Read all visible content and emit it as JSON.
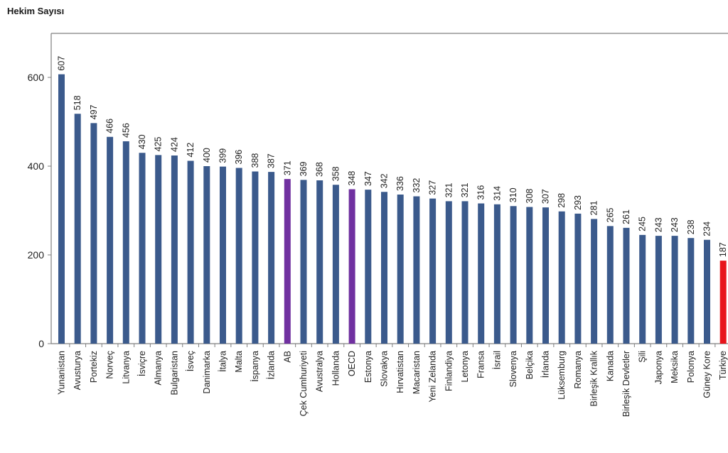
{
  "chart_data": {
    "type": "bar",
    "title": "Hekim Sayısı",
    "xlabel": "",
    "ylabel": "",
    "ylim": [
      0,
      700
    ],
    "yticks": [
      0,
      200,
      400,
      600
    ],
    "grid": false,
    "legend": "none",
    "categories": [
      "Yunanistan",
      "Avusturya",
      "Portekiz",
      "Norveç",
      "Litvanya",
      "İsviçre",
      "Almanya",
      "Bulgaristan",
      "İsveç",
      "Danimarka",
      "İtalya",
      "Malta",
      "İspanya",
      "İzlanda",
      "AB",
      "Çek Cumhuriyeti",
      "Avustralya",
      "Hollanda",
      "OECD",
      "Estonya",
      "Slovakya",
      "Hırvatistan",
      "Macaristan",
      "Yeni Zelanda",
      "Finlandiya",
      "Letonya",
      "Fransa",
      "İsrail",
      "Slovenya",
      "Belçika",
      "İrlanda",
      "Lüksemburg",
      "Romanya",
      "Birleşik Krallık",
      "Kanada",
      "Birleşik Devletler",
      "Şili",
      "Japonya",
      "Meksika",
      "Polonya",
      "Güney Kore",
      "Türkiye"
    ],
    "values": [
      607,
      518,
      497,
      466,
      456,
      430,
      425,
      424,
      412,
      400,
      399,
      396,
      388,
      387,
      371,
      369,
      368,
      358,
      348,
      347,
      342,
      336,
      332,
      327,
      321,
      321,
      316,
      314,
      310,
      308,
      307,
      298,
      293,
      281,
      265,
      261,
      245,
      243,
      243,
      238,
      234,
      187
    ],
    "colors": {
      "default": "#3b5a8c",
      "AB": "#7030a0",
      "OECD": "#7030a0",
      "Türkiye": "#e8131b"
    }
  }
}
